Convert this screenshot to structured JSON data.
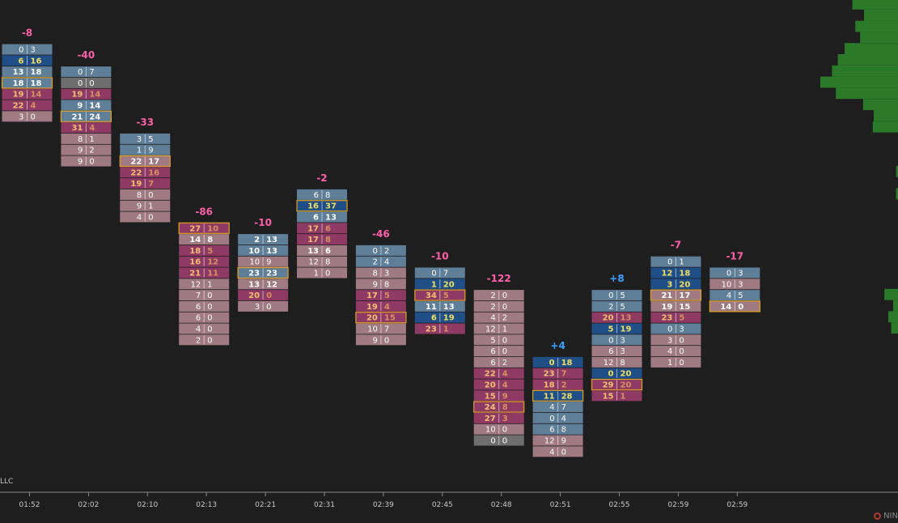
{
  "brand_text": "LLC",
  "logo_text": "NIN",
  "colors": {
    "background": "#1e1e1e",
    "bid_dominant": "#1f4f86",
    "ask_dominant": "#8e3a64",
    "neutral_top": "#5f7e98",
    "neutral_bottom": "#a07a82",
    "high_volume_border": "#e0a020",
    "delta_negative": "#ff5fa8",
    "delta_positive": "#3aa0ff",
    "profile": "#2a7a2a",
    "axis": "#8a8a8a"
  },
  "chart_data": {
    "type": "footprint",
    "x_ticks": [
      "01:52",
      "02:02",
      "02:10",
      "02:13",
      "02:21",
      "02:31",
      "02:39",
      "02:45",
      "02:48",
      "02:51",
      "02:55",
      "02:59",
      "02:59"
    ],
    "bars": [
      {
        "time": "01:52",
        "delta": "-8",
        "top_level": 0,
        "highlight": 3,
        "rows": [
          [
            0,
            3,
            "n"
          ],
          [
            6,
            16,
            "b"
          ],
          [
            13,
            18,
            "n"
          ],
          [
            18,
            18,
            "n"
          ],
          [
            19,
            14,
            "a"
          ],
          [
            22,
            4,
            "a"
          ],
          [
            3,
            0,
            "p"
          ]
        ]
      },
      {
        "time": "02:02",
        "delta": "-40",
        "top_level": 2,
        "highlight": 4,
        "rows": [
          [
            0,
            7,
            "n"
          ],
          [
            0,
            0,
            "g"
          ],
          [
            19,
            14,
            "a"
          ],
          [
            9,
            14,
            "n"
          ],
          [
            21,
            24,
            "n"
          ],
          [
            31,
            4,
            "a"
          ],
          [
            8,
            1,
            "p"
          ],
          [
            9,
            2,
            "p"
          ],
          [
            9,
            0,
            "p"
          ]
        ]
      },
      {
        "time": "02:10",
        "delta": "-33",
        "top_level": 8,
        "highlight": 2,
        "rows": [
          [
            3,
            5,
            "n"
          ],
          [
            1,
            9,
            "n"
          ],
          [
            22,
            17,
            "p"
          ],
          [
            22,
            16,
            "a"
          ],
          [
            19,
            7,
            "a"
          ],
          [
            8,
            0,
            "p"
          ],
          [
            9,
            1,
            "p"
          ],
          [
            4,
            0,
            "p"
          ]
        ]
      },
      {
        "time": "02:13",
        "delta": "-86",
        "top_level": 16,
        "highlight": 0,
        "rows": [
          [
            27,
            10,
            "a"
          ],
          [
            14,
            8,
            "p"
          ],
          [
            18,
            5,
            "a"
          ],
          [
            16,
            12,
            "a"
          ],
          [
            21,
            11,
            "a"
          ],
          [
            12,
            1,
            "p"
          ],
          [
            7,
            0,
            "p"
          ],
          [
            6,
            0,
            "p"
          ],
          [
            6,
            0,
            "p"
          ],
          [
            4,
            0,
            "p"
          ],
          [
            2,
            0,
            "p"
          ]
        ]
      },
      {
        "time": "02:21",
        "delta": "-10",
        "top_level": 17,
        "highlight": 3,
        "rows": [
          [
            2,
            13,
            "n"
          ],
          [
            10,
            13,
            "n"
          ],
          [
            10,
            9,
            "p"
          ],
          [
            23,
            23,
            "n"
          ],
          [
            13,
            12,
            "p"
          ],
          [
            20,
            0,
            "a"
          ],
          [
            3,
            0,
            "p"
          ]
        ]
      },
      {
        "time": "02:31",
        "delta": "-2",
        "top_level": 13,
        "highlight": 1,
        "rows": [
          [
            6,
            8,
            "n"
          ],
          [
            16,
            37,
            "b"
          ],
          [
            6,
            13,
            "n"
          ],
          [
            17,
            6,
            "a"
          ],
          [
            17,
            8,
            "a"
          ],
          [
            13,
            6,
            "p"
          ],
          [
            12,
            8,
            "p"
          ],
          [
            1,
            0,
            "p"
          ]
        ]
      },
      {
        "time": "02:39",
        "delta": "-46",
        "top_level": 18,
        "highlight": 6,
        "rows": [
          [
            0,
            2,
            "n"
          ],
          [
            2,
            4,
            "n"
          ],
          [
            8,
            3,
            "p"
          ],
          [
            9,
            8,
            "p"
          ],
          [
            17,
            5,
            "a"
          ],
          [
            19,
            4,
            "a"
          ],
          [
            20,
            15,
            "a"
          ],
          [
            10,
            7,
            "p"
          ],
          [
            9,
            0,
            "p"
          ]
        ]
      },
      {
        "time": "02:45",
        "delta": "-10",
        "top_level": 20,
        "highlight": 2,
        "rows": [
          [
            0,
            7,
            "n"
          ],
          [
            1,
            20,
            "b"
          ],
          [
            34,
            5,
            "a"
          ],
          [
            11,
            13,
            "n"
          ],
          [
            6,
            19,
            "b"
          ],
          [
            23,
            1,
            "a"
          ]
        ]
      },
      {
        "time": "02:48",
        "delta": "-122",
        "top_level": 22,
        "highlight": 10,
        "rows": [
          [
            2,
            0,
            "p"
          ],
          [
            2,
            0,
            "p"
          ],
          [
            4,
            2,
            "p"
          ],
          [
            12,
            1,
            "p"
          ],
          [
            5,
            0,
            "p"
          ],
          [
            6,
            0,
            "p"
          ],
          [
            6,
            2,
            "p"
          ],
          [
            22,
            4,
            "a"
          ],
          [
            20,
            4,
            "a"
          ],
          [
            15,
            9,
            "a"
          ],
          [
            24,
            8,
            "a"
          ],
          [
            27,
            3,
            "a"
          ],
          [
            10,
            0,
            "p"
          ],
          [
            0,
            0,
            "g"
          ]
        ]
      },
      {
        "time": "02:51",
        "delta": "+4",
        "top_level": 28,
        "highlight": 3,
        "rows": [
          [
            0,
            18,
            "b"
          ],
          [
            23,
            7,
            "a"
          ],
          [
            18,
            2,
            "a"
          ],
          [
            11,
            28,
            "b"
          ],
          [
            4,
            7,
            "n"
          ],
          [
            0,
            4,
            "n"
          ],
          [
            6,
            8,
            "n"
          ],
          [
            12,
            9,
            "p"
          ],
          [
            4,
            0,
            "p"
          ]
        ]
      },
      {
        "time": "02:55",
        "delta": "+8",
        "top_level": 22,
        "highlight": 8,
        "rows": [
          [
            0,
            5,
            "n"
          ],
          [
            2,
            5,
            "n"
          ],
          [
            20,
            13,
            "a"
          ],
          [
            5,
            19,
            "b"
          ],
          [
            0,
            3,
            "n"
          ],
          [
            6,
            3,
            "p"
          ],
          [
            12,
            8,
            "p"
          ],
          [
            0,
            20,
            "b"
          ],
          [
            29,
            20,
            "a"
          ],
          [
            15,
            1,
            "a"
          ]
        ]
      },
      {
        "time": "02:59",
        "delta": "-7",
        "top_level": 19,
        "highlight": 3,
        "rows": [
          [
            0,
            1,
            "n"
          ],
          [
            12,
            18,
            "b"
          ],
          [
            3,
            20,
            "b"
          ],
          [
            21,
            17,
            "p"
          ],
          [
            19,
            15,
            "p"
          ],
          [
            23,
            5,
            "a"
          ],
          [
            0,
            3,
            "n"
          ],
          [
            3,
            0,
            "p"
          ],
          [
            4,
            0,
            "p"
          ],
          [
            1,
            0,
            "p"
          ]
        ]
      },
      {
        "time": "02:59",
        "delta": "-17",
        "top_level": 20,
        "highlight": 3,
        "rows": [
          [
            0,
            3,
            "n"
          ],
          [
            10,
            3,
            "p"
          ],
          [
            4,
            5,
            "n"
          ],
          [
            14,
            0,
            "p"
          ]
        ]
      }
    ],
    "volume_profile": [
      {
        "level": 0,
        "value": 0.47
      },
      {
        "level": 1,
        "value": 0.35
      },
      {
        "level": 2,
        "value": 0.44
      },
      {
        "level": 3,
        "value": 0.39
      },
      {
        "level": 4,
        "value": 0.55
      },
      {
        "level": 5,
        "value": 0.62
      },
      {
        "level": 6,
        "value": 0.68
      },
      {
        "level": 7,
        "value": 0.8
      },
      {
        "level": 8,
        "value": 0.64
      },
      {
        "level": 9,
        "value": 0.36
      },
      {
        "level": 10,
        "value": 0.25
      },
      {
        "level": 11,
        "value": 0.26
      },
      {
        "level": 15,
        "value": 0.02
      },
      {
        "level": 17,
        "value": 0.02
      },
      {
        "level": 26,
        "value": 0.14
      },
      {
        "level": 27,
        "value": 0.05
      },
      {
        "level": 28,
        "value": 0.1
      },
      {
        "level": 29,
        "value": 0.07
      }
    ]
  }
}
